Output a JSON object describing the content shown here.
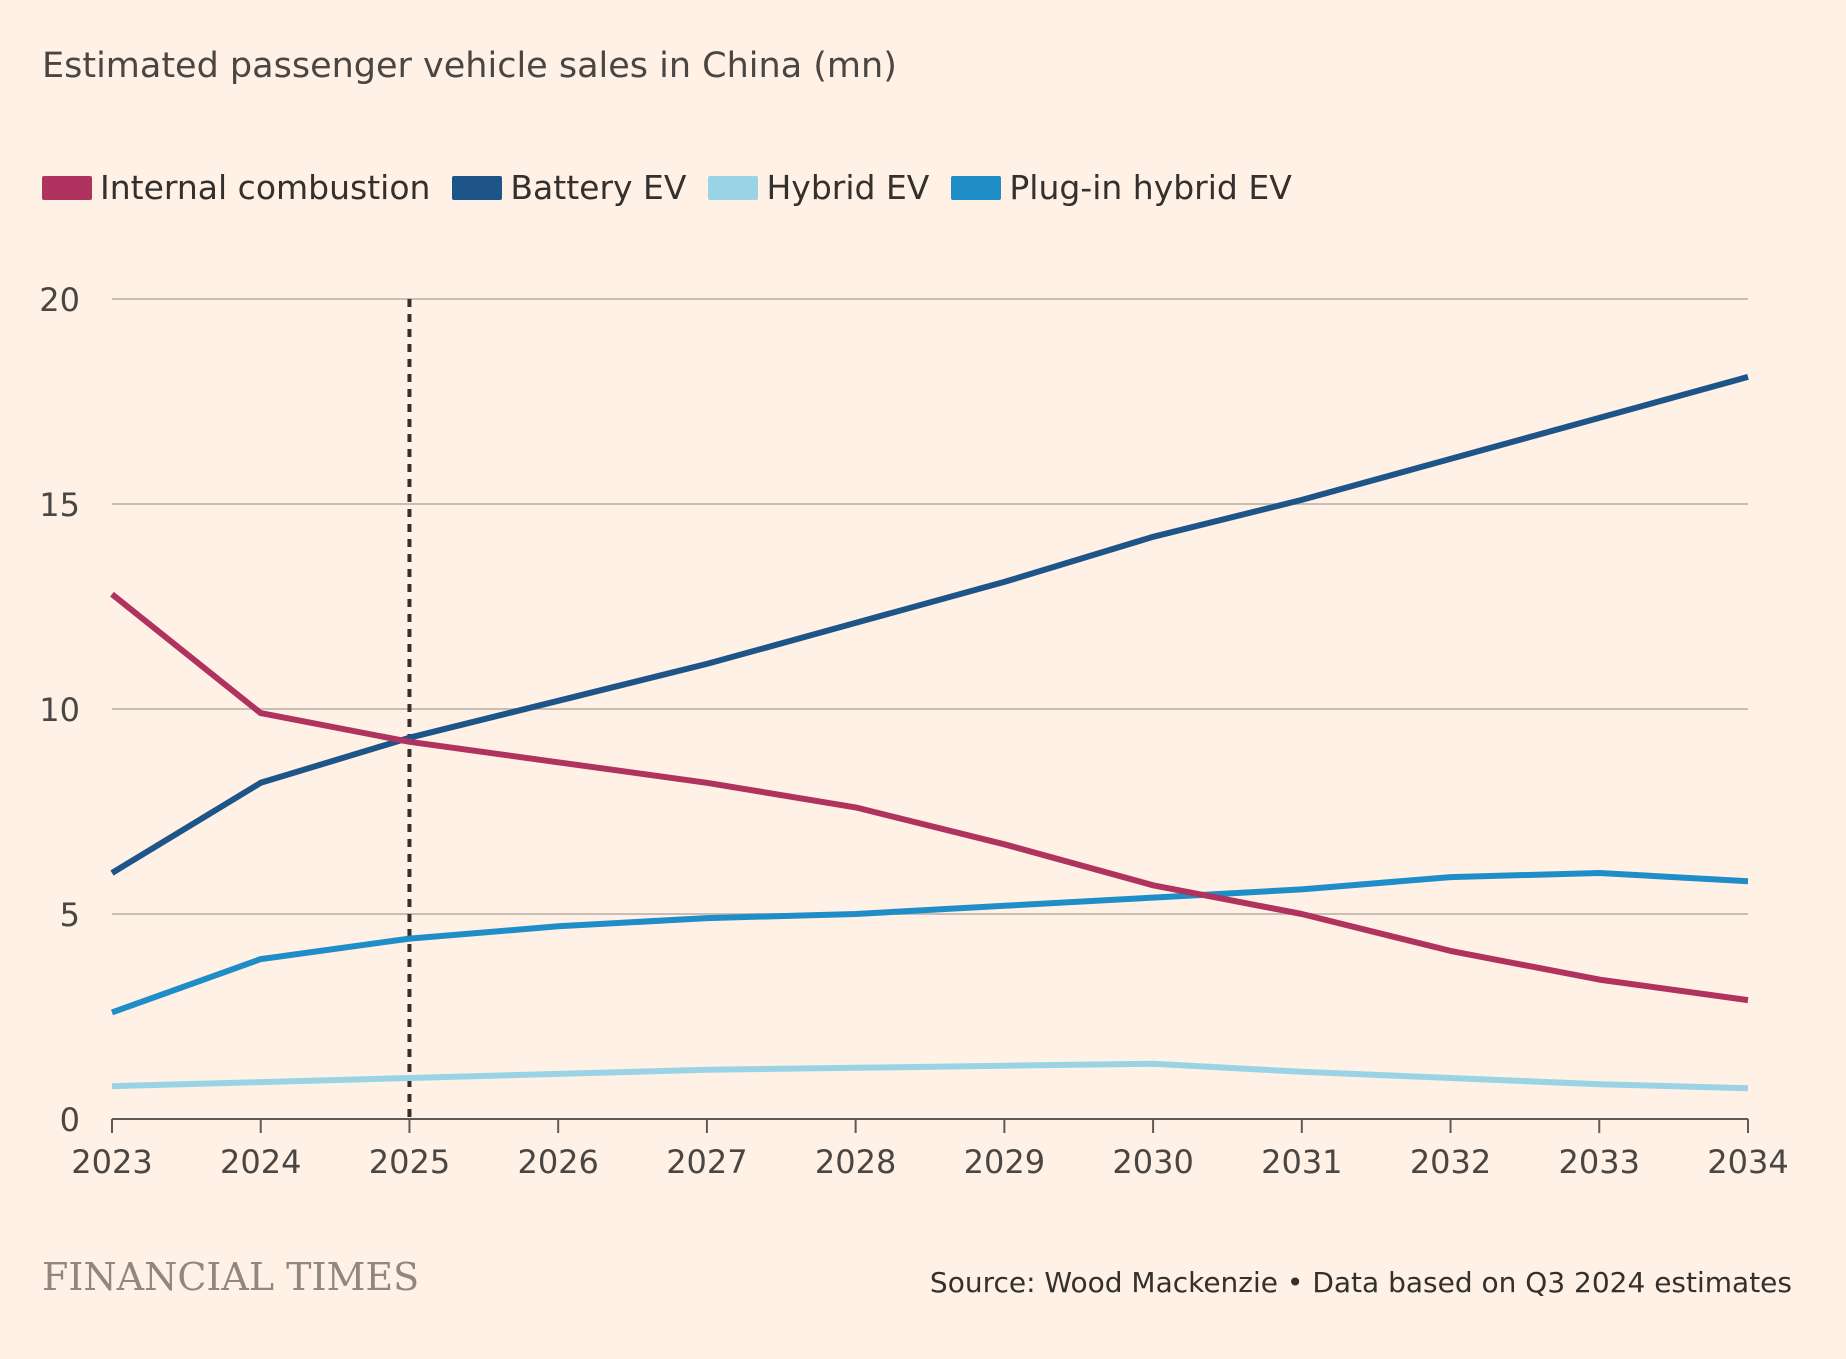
{
  "chart_data": {
    "type": "line",
    "title": "Estimated passenger vehicle sales in China (mn)",
    "xlabel": "",
    "ylabel": "",
    "x": [
      "2023",
      "2024",
      "2025",
      "2026",
      "2027",
      "2028",
      "2029",
      "2030",
      "2031",
      "2032",
      "2033",
      "2034"
    ],
    "ylim": [
      0,
      20
    ],
    "yticks": [
      "0",
      "5",
      "10",
      "15",
      "20"
    ],
    "grid": true,
    "legend_position": "top-left",
    "forecast_marker": "2025",
    "series": [
      {
        "name": "Internal combustion",
        "color": "#B0325E",
        "values": [
          12.8,
          9.9,
          9.2,
          8.7,
          8.2,
          7.6,
          6.7,
          5.7,
          5.0,
          4.1,
          3.4,
          2.9
        ]
      },
      {
        "name": "Battery EV",
        "color": "#1D5589",
        "values": [
          6.0,
          8.2,
          9.3,
          10.2,
          11.1,
          12.1,
          13.1,
          14.2,
          15.1,
          16.1,
          17.1,
          18.1
        ]
      },
      {
        "name": "Hybrid EV",
        "color": "#9BD3E6",
        "values": [
          0.8,
          0.9,
          1.0,
          1.1,
          1.2,
          1.25,
          1.3,
          1.35,
          1.15,
          1.0,
          0.85,
          0.75
        ]
      },
      {
        "name": "Plug-in hybrid EV",
        "color": "#1E8DC8",
        "values": [
          2.6,
          3.9,
          4.4,
          4.7,
          4.9,
          5.0,
          5.2,
          5.4,
          5.6,
          5.9,
          6.0,
          5.8
        ]
      }
    ]
  },
  "footer": {
    "brand": "FINANCIAL TIMES",
    "source": "Source: Wood Mackenzie • Data based on Q3 2024 estimates"
  }
}
